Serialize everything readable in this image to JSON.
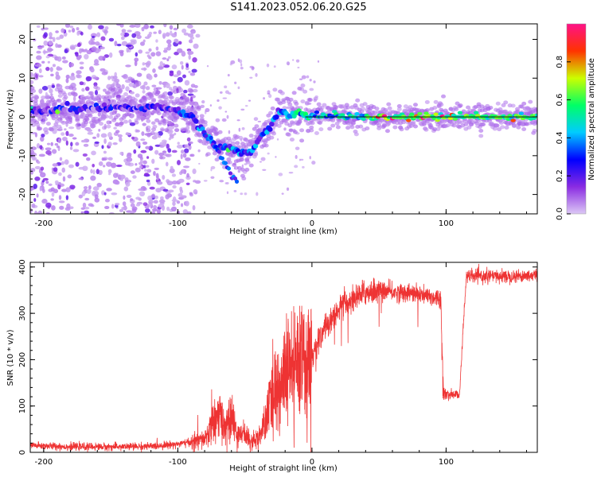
{
  "title": "S141.2023.052.06.20.G25",
  "chart_data": [
    {
      "type": "heatmap",
      "xlabel": "Height of straight line (km)",
      "ylabel": "Frequency (Hz)",
      "xlim": [
        -210,
        168
      ],
      "ylim": [
        -25,
        24
      ],
      "xticks": [
        -200,
        -100,
        0,
        100
      ],
      "yticks": [
        -20,
        -10,
        0,
        10,
        20
      ],
      "colorbar": {
        "label": "Normalized spectral amplitude",
        "range": [
          0,
          1
        ],
        "ticks": [
          "0.0",
          "0.2",
          "0.4",
          "0.6",
          "0.8"
        ],
        "colormap": [
          "#dcc8f5",
          "#8a2be2",
          "#0000ff",
          "#00ccff",
          "#00ff66",
          "#ccff00",
          "#ff3300",
          "#ff1188"
        ]
      },
      "ridge": {
        "x": [
          -210,
          -180,
          -150,
          -120,
          -100,
          -90,
          -80,
          -70,
          -60,
          -55,
          -50,
          -45,
          -40,
          -35,
          -30,
          -25,
          -20,
          -15,
          -10,
          -5,
          0,
          20,
          50,
          100,
          168
        ],
        "y": [
          1.5,
          2,
          2.5,
          2.5,
          2,
          0,
          -4,
          -8,
          -8,
          -9,
          -9,
          -9,
          -6,
          -4,
          -2,
          2,
          0.8,
          0.5,
          1.5,
          0,
          0,
          0.5,
          0,
          0,
          0
        ]
      },
      "branch": {
        "x": [
          -80,
          -70,
          -65,
          -60,
          -55
        ],
        "y": [
          -4,
          -9,
          -12,
          -15,
          -17
        ]
      }
    },
    {
      "type": "line",
      "xlabel": "Height of straight line (km)",
      "ylabel": "SNR (10 * v/v)",
      "xlim": [
        -210,
        168
      ],
      "ylim": [
        0,
        410
      ],
      "xticks": [
        -200,
        -100,
        0,
        100
      ],
      "yticks": [
        0,
        100,
        200,
        300,
        400
      ],
      "color": "#ee3333",
      "x": [
        -210,
        -180,
        -150,
        -120,
        -100,
        -90,
        -80,
        -75,
        -70,
        -65,
        -60,
        -55,
        -50,
        -45,
        -40,
        -35,
        -30,
        -25,
        -20,
        -15,
        -10,
        -5,
        0,
        5,
        10,
        20,
        30,
        40,
        50,
        60,
        70,
        80,
        90,
        96,
        98,
        100,
        110,
        113,
        115,
        120,
        140,
        168
      ],
      "y": [
        15,
        12,
        12,
        13,
        18,
        22,
        28,
        55,
        80,
        60,
        70,
        40,
        40,
        25,
        30,
        60,
        120,
        140,
        160,
        180,
        180,
        200,
        210,
        240,
        270,
        310,
        330,
        345,
        350,
        345,
        345,
        340,
        335,
        335,
        130,
        125,
        125,
        280,
        380,
        380,
        380,
        382
      ]
    }
  ]
}
